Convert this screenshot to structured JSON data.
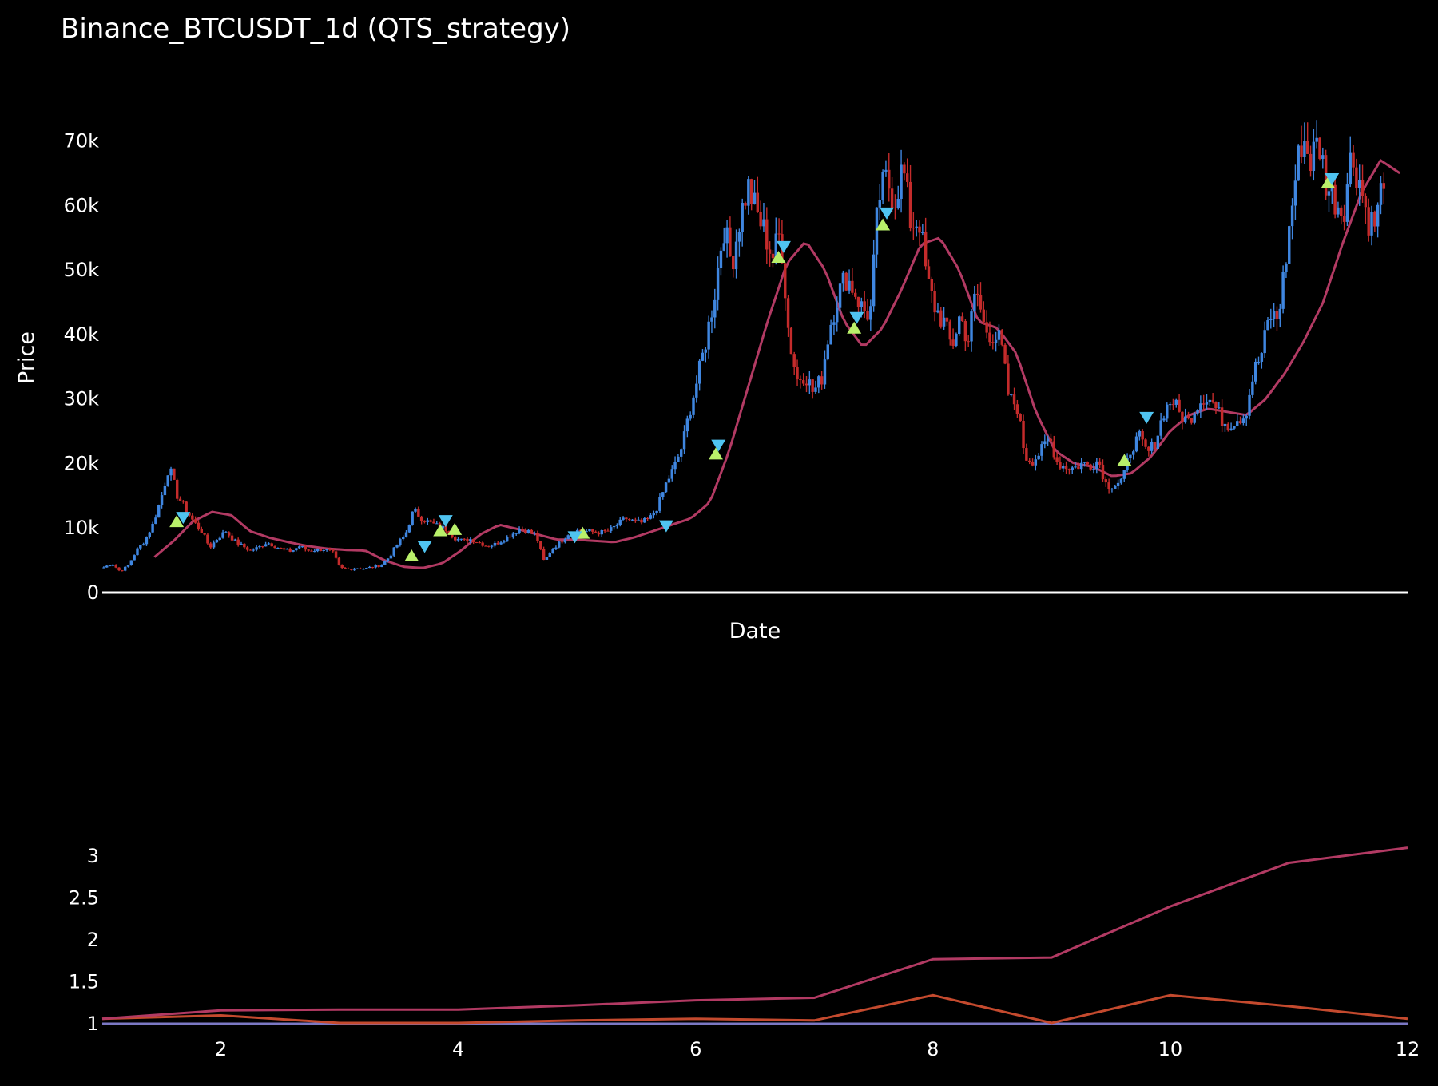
{
  "chart_data": [
    {
      "type": "candlestick",
      "title": "Binance_BTCUSDT_1d (QTS_strategy)",
      "xlabel": "Date",
      "ylabel": "Price",
      "ylim": [
        0,
        77000
      ],
      "y_ticks": [
        {
          "value": 0,
          "label": "0"
        },
        {
          "value": 10000,
          "label": "10k"
        },
        {
          "value": 20000,
          "label": "20k"
        },
        {
          "value": 30000,
          "label": "30k"
        },
        {
          "value": 40000,
          "label": "40k"
        },
        {
          "value": 50000,
          "label": "50k"
        },
        {
          "value": 60000,
          "label": "60k"
        },
        {
          "value": 70000,
          "label": "70k"
        }
      ],
      "x_tick_labels_shown": false,
      "colors": {
        "increasing": "#3f86e0",
        "decreasing": "#c42b2b",
        "moving_average": "#b23a63",
        "buy_marker": "#b9f06a",
        "sell_marker": "#4fc3f0",
        "zero_line": "#ffffff"
      },
      "price_path": [
        3900,
        4500,
        3300,
        4200,
        6500,
        8000,
        10500,
        14500,
        19600,
        15000,
        13000,
        11000,
        9500,
        7000,
        8500,
        9500,
        8000,
        7200,
        6500,
        7000,
        7800,
        7200,
        6600,
        6400,
        7200,
        6500,
        6600,
        6700,
        6400,
        3800,
        3600,
        3800,
        3700,
        4000,
        4200,
        5500,
        7500,
        9000,
        12800,
        11500,
        10800,
        10300,
        9800,
        8500,
        8000,
        8300,
        7800,
        7200,
        7500,
        8200,
        9000,
        9900,
        9500,
        9000,
        4800,
        6800,
        7800,
        9200,
        9600,
        9500,
        9400,
        9300,
        9600,
        10500,
        11500,
        11000,
        10800,
        11500,
        13500,
        17000,
        19500,
        23000,
        29000,
        34000,
        40000,
        47000,
        57000,
        51000,
        58000,
        63000,
        59000,
        56000,
        52000,
        56000,
        40000,
        33000,
        34000,
        31000,
        33000,
        41000,
        46000,
        49000,
        47000,
        44000,
        43000,
        61000,
        64000,
        61000,
        66000,
        57000,
        58000,
        48000,
        44000,
        42000,
        38000,
        43000,
        39000,
        47000,
        41000,
        40000,
        39000,
        30000,
        29000,
        21000,
        20500,
        22000,
        24000,
        20000,
        19500,
        19300,
        20000,
        19800,
        20500,
        16500,
        16800,
        17500,
        22500,
        24000,
        21500,
        23500,
        28000,
        30000,
        27500,
        26500,
        29000,
        30500,
        29500,
        27000,
        26000,
        27000,
        27500,
        34000,
        37000,
        43000,
        42500,
        52000,
        63000,
        71000,
        67000,
        70000,
        63000,
        61000,
        59000,
        68000,
        64000,
        58000,
        57000,
        65000
      ],
      "moving_average_path": [
        5500,
        8000,
        11000,
        12500,
        12000,
        9500,
        8500,
        7800,
        7200,
        6800,
        6600,
        6500,
        5000,
        4000,
        3800,
        4500,
        6500,
        9000,
        10500,
        9800,
        9000,
        8200,
        8200,
        8000,
        7800,
        8500,
        9500,
        10500,
        11500,
        14000,
        22000,
        32000,
        42000,
        51000,
        54500,
        50000,
        42000,
        38000,
        41000,
        47000,
        54000,
        55000,
        50000,
        42000,
        41000,
        37000,
        28000,
        22000,
        20000,
        19500,
        18000,
        18500,
        21000,
        25000,
        27500,
        28500,
        28000,
        27500,
        30000,
        34000,
        39000,
        45000,
        54000,
        62000,
        67000,
        65000
      ],
      "buy_markers": [
        {
          "t": 0.057,
          "price": 11000
        },
        {
          "t": 0.237,
          "price": 5700
        },
        {
          "t": 0.259,
          "price": 9600
        },
        {
          "t": 0.27,
          "price": 9800
        },
        {
          "t": 0.368,
          "price": 9200
        },
        {
          "t": 0.47,
          "price": 21500
        },
        {
          "t": 0.518,
          "price": 52000
        },
        {
          "t": 0.576,
          "price": 41000
        },
        {
          "t": 0.598,
          "price": 57000
        },
        {
          "t": 0.783,
          "price": 20500
        },
        {
          "t": 0.939,
          "price": 63500
        }
      ],
      "sell_markers": [
        {
          "t": 0.062,
          "price": 11500
        },
        {
          "t": 0.247,
          "price": 7000
        },
        {
          "t": 0.263,
          "price": 11000
        },
        {
          "t": 0.362,
          "price": 8500
        },
        {
          "t": 0.432,
          "price": 10200
        },
        {
          "t": 0.472,
          "price": 22700
        },
        {
          "t": 0.522,
          "price": 53500
        },
        {
          "t": 0.578,
          "price": 42500
        },
        {
          "t": 0.601,
          "price": 58700
        },
        {
          "t": 0.8,
          "price": 27000
        },
        {
          "t": 0.942,
          "price": 64000
        }
      ]
    },
    {
      "type": "line",
      "x": [
        1,
        2,
        3,
        4,
        5,
        6,
        7,
        8,
        9,
        10,
        11,
        12
      ],
      "xlim": [
        1,
        12
      ],
      "ylim": [
        1,
        3.22
      ],
      "x_ticks": [
        {
          "value": 2,
          "label": "2"
        },
        {
          "value": 4,
          "label": "4"
        },
        {
          "value": 6,
          "label": "6"
        },
        {
          "value": 8,
          "label": "8"
        },
        {
          "value": 10,
          "label": "10"
        },
        {
          "value": 12,
          "label": "12"
        }
      ],
      "y_ticks": [
        {
          "value": 1,
          "label": "1"
        },
        {
          "value": 1.5,
          "label": "1.5"
        },
        {
          "value": 2,
          "label": "2"
        },
        {
          "value": 2.5,
          "label": "2.5"
        },
        {
          "value": 3,
          "label": "3"
        }
      ],
      "series": [
        {
          "values": [
            1.06,
            1.16,
            1.17,
            1.17,
            1.22,
            1.28,
            1.31,
            1.77,
            1.79,
            2.4,
            2.92,
            3.1
          ],
          "color": "#b23a63"
        },
        {
          "values": [
            1.06,
            1.1,
            1.01,
            1.01,
            1.04,
            1.06,
            1.04,
            1.34,
            1.01,
            1.34,
            1.21,
            1.06
          ],
          "color": "#c44a2e"
        },
        {
          "values": [
            1,
            1,
            1,
            1,
            1,
            1,
            1,
            1,
            1,
            1,
            1,
            1
          ],
          "color": "#7b78c4"
        }
      ]
    }
  ]
}
